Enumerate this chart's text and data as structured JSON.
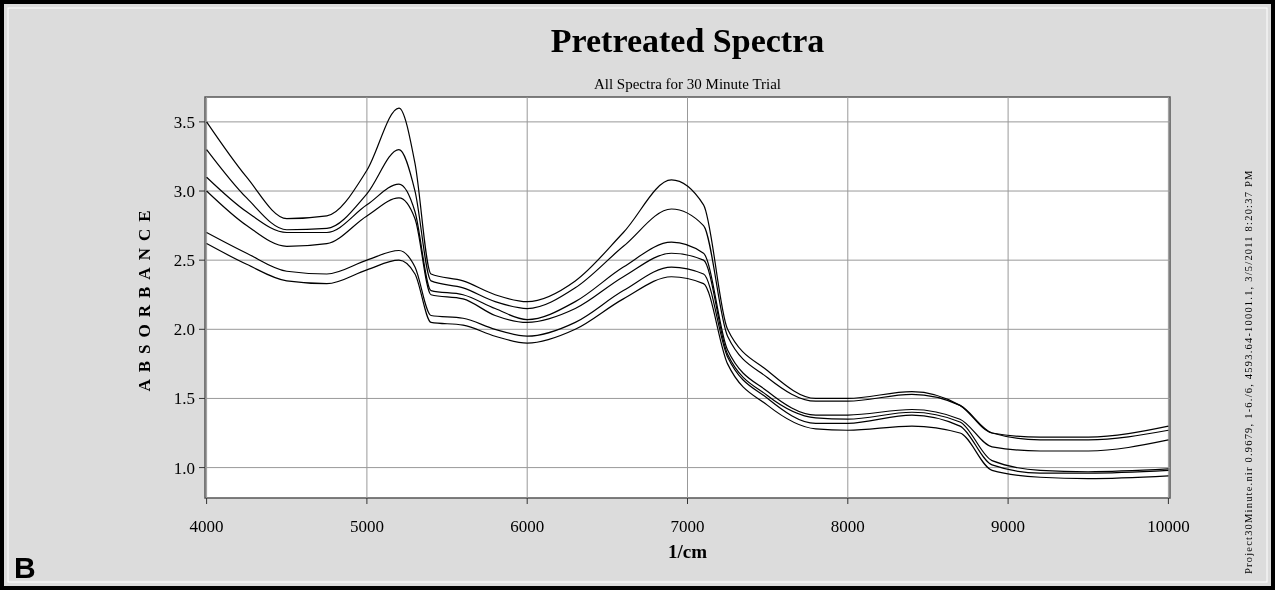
{
  "chart_data": {
    "type": "line",
    "title": "Pretreated Spectra",
    "subtitle": "All Spectra for 30 Minute Trial",
    "xlabel": "1/cm",
    "ylabel": "ABSORBANCE",
    "annotations": [
      "B",
      "Project30Minute.nir 0.9679, 1-6./6, 4593.64-10001.1, 3/5/2011 8:20:37 PM"
    ],
    "x": [
      4000,
      4250,
      4500,
      4750,
      5000,
      5200,
      5300,
      5400,
      5600,
      5800,
      6000,
      6300,
      6600,
      6900,
      7100,
      7250,
      7500,
      7800,
      8000,
      8400,
      8700,
      8900,
      9200,
      9500,
      10000
    ],
    "series": [
      {
        "color": "#000000",
        "values": [
          3.5,
          3.1,
          2.8,
          2.82,
          3.15,
          3.6,
          3.2,
          2.4,
          2.35,
          2.25,
          2.2,
          2.35,
          2.7,
          3.08,
          2.9,
          2.0,
          1.7,
          1.5,
          1.5,
          1.55,
          1.45,
          1.25,
          1.22,
          1.22,
          1.3
        ]
      },
      {
        "color": "#000000",
        "values": [
          3.3,
          2.95,
          2.72,
          2.73,
          2.98,
          3.3,
          3.0,
          2.35,
          2.3,
          2.2,
          2.15,
          2.3,
          2.6,
          2.87,
          2.75,
          1.95,
          1.65,
          1.48,
          1.48,
          1.53,
          1.45,
          1.25,
          1.2,
          1.2,
          1.27
        ]
      },
      {
        "color": "#000000",
        "values": [
          3.1,
          2.85,
          2.7,
          2.7,
          2.9,
          3.05,
          2.85,
          2.28,
          2.25,
          2.15,
          2.07,
          2.2,
          2.45,
          2.63,
          2.55,
          1.85,
          1.55,
          1.38,
          1.38,
          1.42,
          1.35,
          1.15,
          1.12,
          1.12,
          1.2
        ]
      },
      {
        "color": "#000000",
        "values": [
          3.0,
          2.75,
          2.6,
          2.62,
          2.82,
          2.95,
          2.8,
          2.25,
          2.22,
          2.1,
          2.05,
          2.15,
          2.38,
          2.55,
          2.5,
          1.82,
          1.52,
          1.36,
          1.35,
          1.4,
          1.33,
          1.05,
          0.98,
          0.97,
          0.99
        ]
      },
      {
        "color": "#000000",
        "values": [
          2.7,
          2.55,
          2.42,
          2.4,
          2.5,
          2.57,
          2.45,
          2.1,
          2.08,
          2.0,
          1.95,
          2.05,
          2.28,
          2.45,
          2.4,
          1.8,
          1.5,
          1.32,
          1.32,
          1.38,
          1.3,
          1.02,
          0.96,
          0.96,
          0.98
        ]
      },
      {
        "color": "#000000",
        "values": [
          2.62,
          2.47,
          2.35,
          2.33,
          2.43,
          2.5,
          2.4,
          2.05,
          2.03,
          1.95,
          1.9,
          2.0,
          2.22,
          2.38,
          2.33,
          1.75,
          1.45,
          1.28,
          1.27,
          1.3,
          1.25,
          0.98,
          0.93,
          0.92,
          0.94
        ]
      }
    ],
    "xlim": [
      3990,
      10010
    ],
    "ylim": [
      0.78,
      3.68
    ],
    "xticks": [
      4000,
      5000,
      6000,
      7000,
      8000,
      9000,
      10000
    ],
    "yticks": [
      {
        "value": 1,
        "label": "1.0"
      },
      {
        "value": 1.5,
        "label": "1.5"
      },
      {
        "value": 2,
        "label": "2.0"
      },
      {
        "value": 2.5,
        "label": "2.5"
      },
      {
        "value": 3,
        "label": "3.0"
      },
      {
        "value": 3.5,
        "label": "3.5"
      }
    ],
    "grid": true,
    "line_style": "solid"
  }
}
